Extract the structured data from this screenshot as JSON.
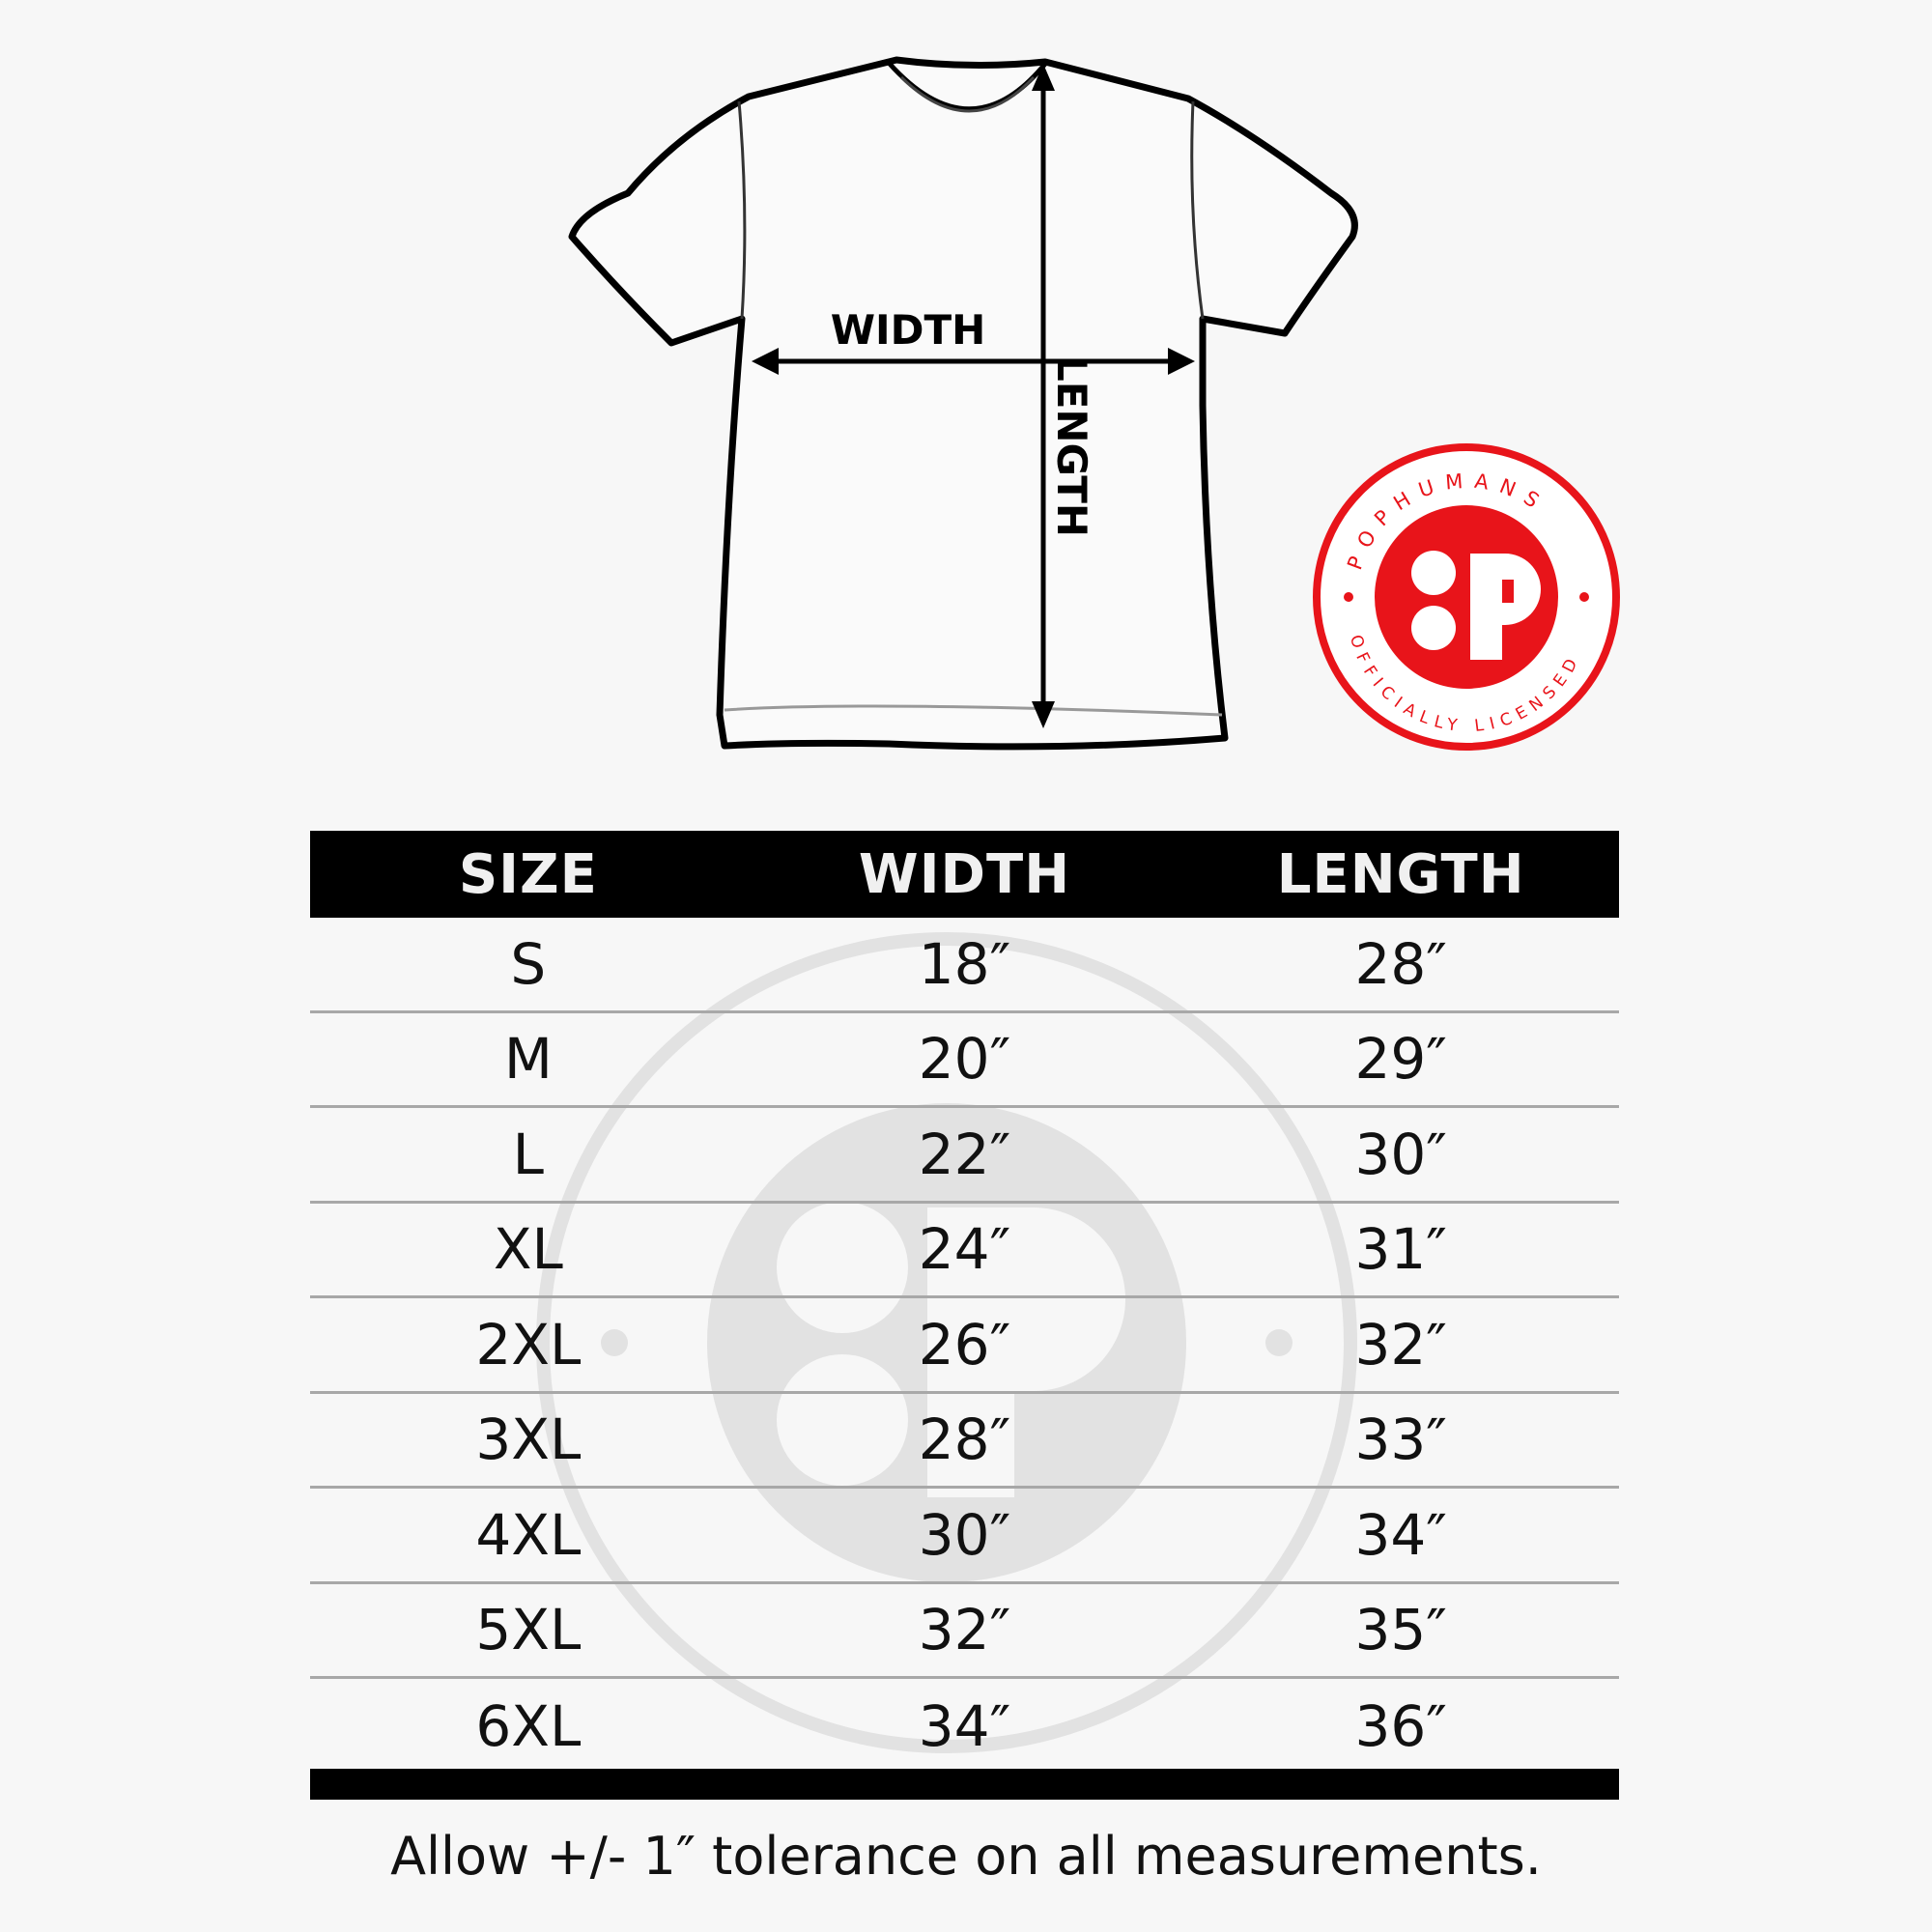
{
  "diagram": {
    "width_label": "WIDTH",
    "length_label": "LENGTH"
  },
  "badge": {
    "brand": "POPHUMANS",
    "tagline": "OFFICIALLY LICENSED",
    "monogram": "P",
    "color": "#e8141a"
  },
  "table": {
    "headers": [
      "SIZE",
      "WIDTH",
      "LENGTH"
    ],
    "rows": [
      [
        "S",
        "18″",
        "28″"
      ],
      [
        "M",
        "20″",
        "29″"
      ],
      [
        "L",
        "22″",
        "30″"
      ],
      [
        "XL",
        "24″",
        "31″"
      ],
      [
        "2XL",
        "26″",
        "32″"
      ],
      [
        "3XL",
        "28″",
        "33″"
      ],
      [
        "4XL",
        "30″",
        "34″"
      ],
      [
        "5XL",
        "32″",
        "35″"
      ],
      [
        "6XL",
        "34″",
        "36″"
      ]
    ]
  },
  "footer": {
    "note": "Allow +/- 1″ tolerance on all measurements."
  }
}
